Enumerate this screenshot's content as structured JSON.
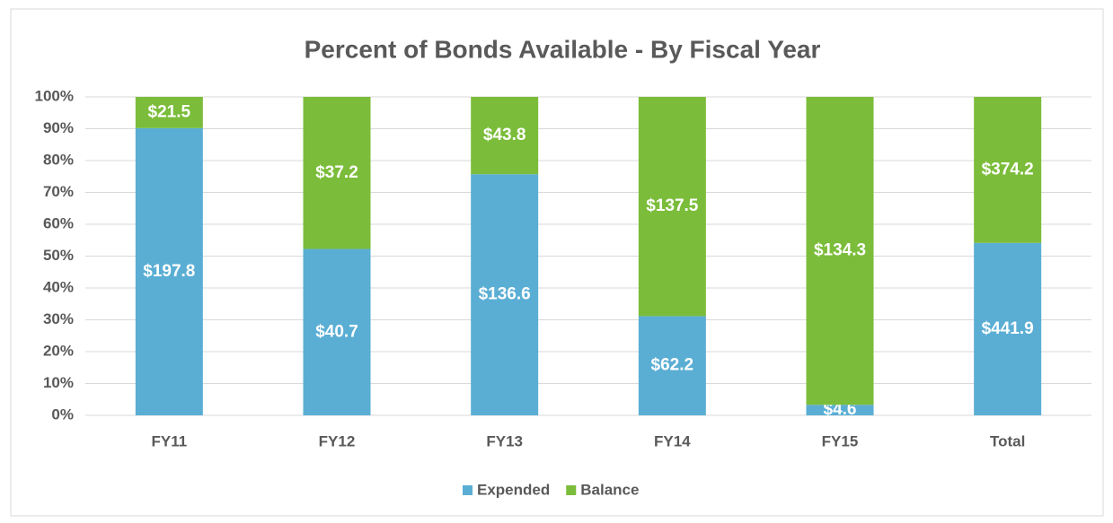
{
  "chart_data": {
    "type": "bar",
    "stacking": "percent",
    "title": "Percent of Bonds Available - By Fiscal Year",
    "categories": [
      "FY11",
      "FY12",
      "FY13",
      "FY14",
      "FY15",
      "Total"
    ],
    "series": [
      {
        "name": "Expended",
        "color": "#5aaed4",
        "values": [
          197.8,
          40.7,
          136.6,
          62.2,
          4.6,
          441.9
        ],
        "value_labels": [
          "$197.8",
          "$40.7",
          "$136.6",
          "$62.2",
          "$4.6",
          "$441.9"
        ]
      },
      {
        "name": "Balance",
        "color": "#7bbd3a",
        "values": [
          21.5,
          37.2,
          43.8,
          137.5,
          134.3,
          374.2
        ],
        "value_labels": [
          "$21.5",
          "$37.2",
          "$43.8",
          "$137.5",
          "$134.3",
          "$374.2"
        ]
      }
    ],
    "ylim": [
      0,
      100
    ],
    "yticks": [
      {
        "value": 0,
        "label": "0%"
      },
      {
        "value": 10,
        "label": "10%"
      },
      {
        "value": 20,
        "label": "20%"
      },
      {
        "value": 30,
        "label": "30%"
      },
      {
        "value": 40,
        "label": "40%"
      },
      {
        "value": 50,
        "label": "50%"
      },
      {
        "value": 60,
        "label": "60%"
      },
      {
        "value": 70,
        "label": "70%"
      },
      {
        "value": 80,
        "label": "80%"
      },
      {
        "value": 90,
        "label": "90%"
      },
      {
        "value": 100,
        "label": "100%"
      }
    ],
    "grid": true,
    "legend": "bottom"
  }
}
